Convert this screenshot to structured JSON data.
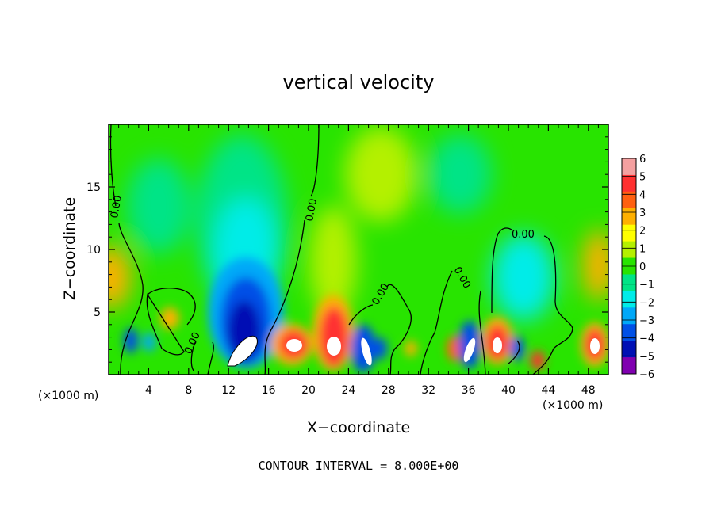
{
  "chart_data": {
    "type": "heatmap",
    "title": "vertical velocity",
    "xlabel": "X−coordinate",
    "ylabel": "Z−coordinate",
    "x_unit_left": "(×1000 m)",
    "x_unit_right": "(×1000 m)",
    "xlim": [
      0,
      50
    ],
    "ylim": [
      0,
      20
    ],
    "x_ticks": [
      4,
      8,
      12,
      16,
      20,
      24,
      28,
      32,
      36,
      40,
      44,
      48
    ],
    "x_tick_labels": [
      "4",
      "8",
      "12",
      "16",
      "20",
      "24",
      "28",
      "32",
      "36",
      "40",
      "44",
      "48"
    ],
    "y_ticks": [
      5,
      10,
      15
    ],
    "y_tick_labels": [
      "5",
      "10",
      "15"
    ],
    "colorbar": {
      "levels": [
        6,
        5,
        4,
        3,
        2,
        1,
        0,
        -1,
        -2,
        -3,
        -4,
        -5,
        -6
      ],
      "labels": [
        "6",
        "5",
        "4",
        "3",
        "2",
        "1",
        "0",
        "−1",
        "−2",
        "−3",
        "−4",
        "−5",
        "−6"
      ],
      "colors": [
        "#f4a0a0",
        "#ff3030",
        "#ff6010",
        "#ffb000",
        "#ffff00",
        "#b4f000",
        "#28e400",
        "#00e486",
        "#00ece8",
        "#00a8f8",
        "#0050e6",
        "#0010b4",
        "#8000b0"
      ]
    },
    "contour_label": "0.00",
    "contour_labels": [
      "0.00",
      "0.00",
      "0.00",
      "0.00",
      "0.00",
      "0.00",
      "0.00",
      "0.00"
    ],
    "footer": "CONTOUR INTERVAL = 8.000E+00",
    "features": [
      {
        "x": 14,
        "z": 3.5,
        "w": -6
      },
      {
        "x": 13.5,
        "z": 2,
        "w": 8
      },
      {
        "x": 18.5,
        "z": 2.5,
        "w": 6
      },
      {
        "x": 22.8,
        "z": 2.6,
        "w": 6.5
      },
      {
        "x": 25.8,
        "z": 2.3,
        "w": 6
      },
      {
        "x": 35.8,
        "z": 2.3,
        "w": 6
      },
      {
        "x": 38.6,
        "z": 2.3,
        "w": 5
      },
      {
        "x": 48.5,
        "z": 2.5,
        "w": 6
      },
      {
        "x": 42,
        "z": 1.2,
        "w": 4
      },
      {
        "x": 0.5,
        "z": 7.5,
        "w": 2.5
      },
      {
        "x": 49,
        "z": 9,
        "w": 2
      },
      {
        "x": 40.5,
        "z": 8,
        "w": -1.5
      },
      {
        "x": 13,
        "z": 11,
        "w": -2
      }
    ]
  }
}
